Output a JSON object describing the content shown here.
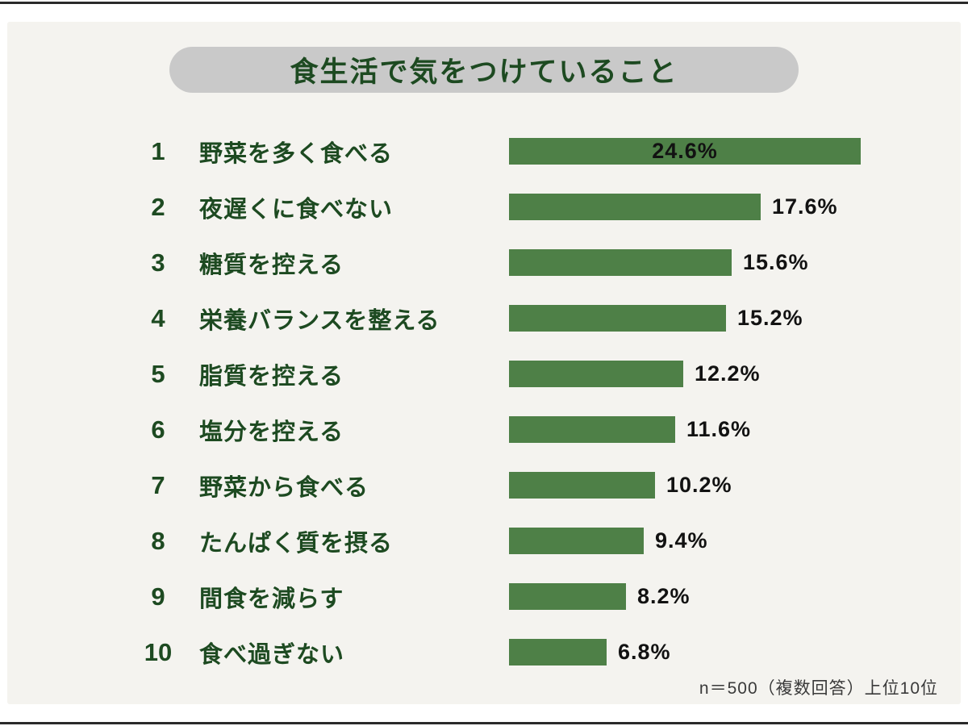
{
  "title": "食生活で気をつけていること",
  "footer": "n＝500（複数回答）上位10位",
  "colors": {
    "bar": "#4e8047",
    "label_text": "#1d4a21",
    "percent_text": "#121212",
    "pill_bg": "#c9c9c9",
    "panel_bg": "#f4f3ef"
  },
  "chart_data": {
    "type": "bar",
    "orientation": "horizontal",
    "title": "食生活で気をつけていること",
    "ranks": [
      1,
      2,
      3,
      4,
      5,
      6,
      7,
      8,
      9,
      10
    ],
    "categories": [
      "野菜を多く食べる",
      "夜遅くに食べない",
      "糖質を控える",
      "栄養バランスを整える",
      "脂質を控える",
      "塩分を控える",
      "野菜から食べる",
      "たんぱく質を摂る",
      "間食を減らす",
      "食べ過ぎない"
    ],
    "values": [
      24.6,
      17.6,
      15.6,
      15.2,
      12.2,
      11.6,
      10.2,
      9.4,
      8.2,
      6.8
    ],
    "unit": "%",
    "xlim": [
      0,
      25
    ],
    "legend": "none",
    "grid": false,
    "value_label_position": "first bar inside, others right of bar",
    "note": "n＝500（複数回答）上位10位"
  }
}
